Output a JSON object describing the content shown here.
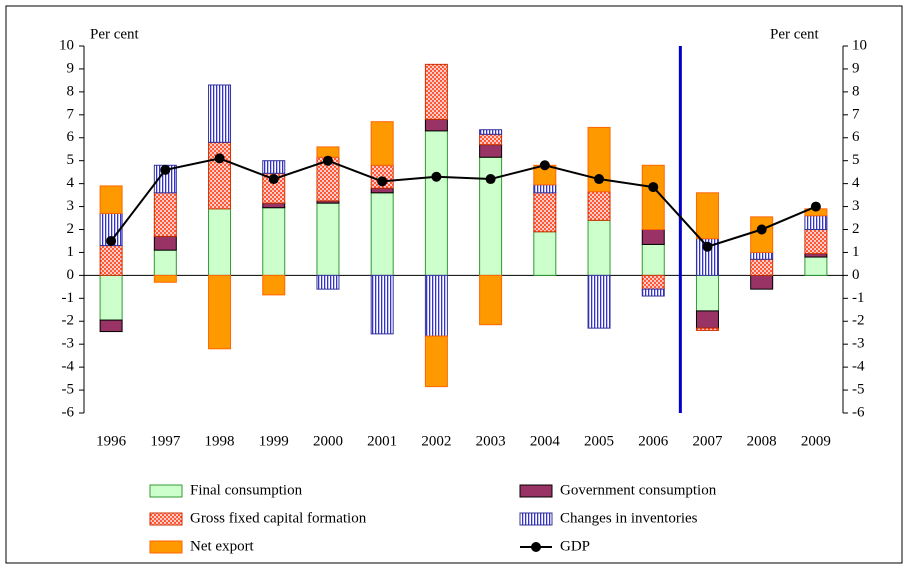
{
  "chart_data": {
    "type": "bar",
    "y_label": "Per cent",
    "y2_label": "Per cent",
    "categories": [
      "1996",
      "1997",
      "1998",
      "1999",
      "2000",
      "2001",
      "2002",
      "2003",
      "2004",
      "2005",
      "2006",
      "2007",
      "2008",
      "2009"
    ],
    "series": [
      {
        "name": "Final consumption",
        "type": "bar",
        "color": "#ccffcc",
        "stroke": "#339933",
        "pattern": "solid",
        "values": [
          -1.95,
          1.1,
          2.9,
          2.95,
          3.15,
          3.6,
          6.3,
          5.15,
          1.9,
          2.4,
          1.35,
          -1.55,
          0,
          0.8
        ]
      },
      {
        "name": "Government consumption",
        "type": "bar",
        "color": "#993366",
        "stroke": "#000000",
        "pattern": "solid",
        "values": [
          -0.5,
          0.6,
          0,
          0.2,
          0.1,
          0.2,
          0.5,
          0.55,
          0,
          0,
          0.65,
          -0.75,
          -0.6,
          0.15
        ]
      },
      {
        "name": "Gross fixed capital formation",
        "type": "bar",
        "color": "#ff3300",
        "stroke": "#cc3300",
        "pattern": "dots",
        "values": [
          1.3,
          1.9,
          2.9,
          1.3,
          1.9,
          1.0,
          2.4,
          0.45,
          1.7,
          1.25,
          -0.6,
          -0.1,
          0.7,
          1.05
        ]
      },
      {
        "name": "Changes in inventories",
        "type": "bar",
        "color": "#3333cc",
        "stroke": "#333399",
        "pattern": "stripes",
        "values": [
          1.4,
          1.2,
          2.5,
          0.55,
          -0.6,
          -2.55,
          -2.65,
          0.2,
          0.35,
          -2.3,
          -0.3,
          1.6,
          0.3,
          0.6
        ]
      },
      {
        "name": "Net export",
        "type": "bar",
        "color": "#ff9900",
        "stroke": "#ff6600",
        "pattern": "solid",
        "values": [
          1.2,
          -0.3,
          -3.2,
          -0.85,
          0.45,
          1.9,
          -2.2,
          -2.15,
          0.85,
          2.8,
          2.8,
          2.0,
          1.55,
          0.3
        ]
      },
      {
        "name": "GDP",
        "type": "line",
        "color": "#000000",
        "values": [
          1.5,
          4.6,
          5.1,
          4.2,
          5.0,
          4.1,
          4.3,
          4.2,
          4.8,
          4.2,
          3.85,
          1.25,
          2.0,
          3.0
        ]
      }
    ],
    "ylim": [
      -6,
      10
    ],
    "yticks": [
      -6,
      -5,
      -4,
      -3,
      -2,
      -1,
      0,
      1,
      2,
      3,
      4,
      5,
      6,
      7,
      8,
      9,
      10
    ],
    "y2lim": [
      -6,
      10
    ],
    "y2ticks": [
      -6,
      -5,
      -4,
      -3,
      -2,
      -1,
      0,
      1,
      2,
      3,
      4,
      5,
      6,
      7,
      8,
      9,
      10
    ],
    "forecast_line_color": "#0000cc"
  }
}
